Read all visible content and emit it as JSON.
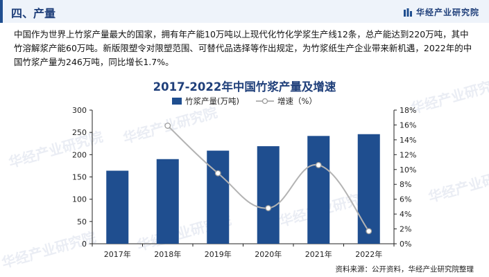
{
  "header": {
    "section_title": "四、产量",
    "brand_name": "华经产业研究院"
  },
  "intro_text": "中国作为世界上竹浆产量最大的国家，拥有年产能10万吨以上现代化竹化学浆生产线12条，总产能达到220万吨，其中竹溶解浆产能60万吨。新版限塑令对限塑范围、可替代品选择等作出规定，为竹浆纸生产企业带来新机遇，2022年的中国竹浆产量为246万吨，同比增长1.7%。",
  "watermark_text": "华经产业研究院",
  "source_text": "资料来源：公开资料，华经产业研究院整理",
  "colors": {
    "bar": "#1f4e8f",
    "line": "#b3b3b3",
    "title": "#1f3f7a",
    "header_bg": "#eef3fa"
  },
  "chart_data": {
    "type": "bar",
    "title": "2017-2022年中国竹浆产量及增速",
    "categories": [
      "2017年",
      "2018年",
      "2019年",
      "2020年",
      "2021年",
      "2022年"
    ],
    "series": [
      {
        "name": "竹浆产量(万吨)",
        "type": "bar",
        "axis": "left",
        "values": [
          164,
          190,
          209,
          219,
          242,
          246
        ]
      },
      {
        "name": "增速（%）",
        "type": "line",
        "axis": "right",
        "smooth": true,
        "values": [
          null,
          15.9,
          9.5,
          4.8,
          10.6,
          1.7
        ]
      }
    ],
    "y_left": {
      "min": 0,
      "max": 300,
      "ticks": [
        "0",
        "50",
        "100",
        "150",
        "200",
        "250",
        "300"
      ]
    },
    "y_right": {
      "min": 0,
      "max": 18,
      "ticks": [
        "0%",
        "2%",
        "4%",
        "6%",
        "8%",
        "10%",
        "12%",
        "14%",
        "16%",
        "18%"
      ]
    },
    "legend_position": "top-center",
    "grid": false
  }
}
